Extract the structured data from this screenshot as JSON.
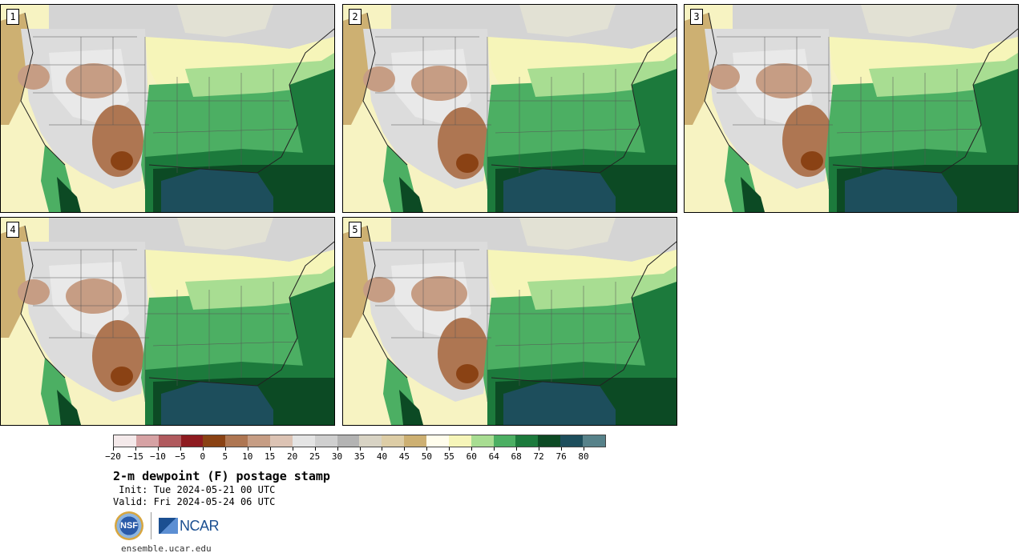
{
  "panels": [
    {
      "label": "1",
      "variant": 0
    },
    {
      "label": "2",
      "variant": 1
    },
    {
      "label": "3",
      "variant": 2
    },
    {
      "label": "4",
      "variant": 3
    },
    {
      "label": "5",
      "variant": 4
    }
  ],
  "colorbar": {
    "colors": [
      "#f4e9ea",
      "#d6a2a4",
      "#b05a5e",
      "#8e1b20",
      "#8a4214",
      "#ae7652",
      "#c69d84",
      "#dcc3b4",
      "#e4e4e4",
      "#cfcfcf",
      "#b3b3b3",
      "#d8d3c4",
      "#ddcda6",
      "#cdb072",
      "#fffdec",
      "#f6f5b9",
      "#a8dd92",
      "#4caf63",
      "#1c7a3c",
      "#0c4a24",
      "#1d4e5c",
      "#57828a"
    ],
    "tick_labels": [
      "−20",
      "−15",
      "−10",
      "−5",
      "0",
      "5",
      "10",
      "15",
      "20",
      "25",
      "30",
      "35",
      "40",
      "45",
      "50",
      "55",
      "60",
      "64",
      "68",
      "72",
      "76",
      "80"
    ]
  },
  "title": "2-m dewpoint (F) postage stamp",
  "init": " Init: Tue 2024-05-21 00 UTC",
  "valid": "Valid: Fri 2024-05-24 06 UTC",
  "logos": {
    "nsf": "NSF",
    "ncar": "NCAR"
  },
  "site": "ensemble.ucar.edu"
}
